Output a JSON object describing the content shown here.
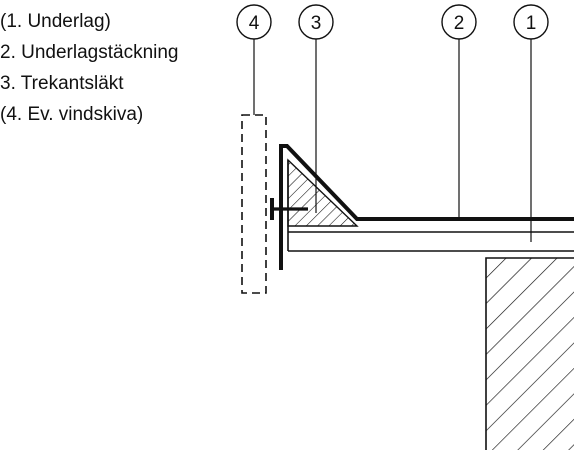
{
  "legend": [
    "(1. Underlag)",
    "2. Underlagstäckning",
    "3. Trekantsläkt",
    "(4. Ev. vindskiva)"
  ],
  "callouts": [
    "4",
    "3",
    "2",
    "1"
  ],
  "colors": {
    "line": "#111111",
    "background": "#ffffff"
  }
}
